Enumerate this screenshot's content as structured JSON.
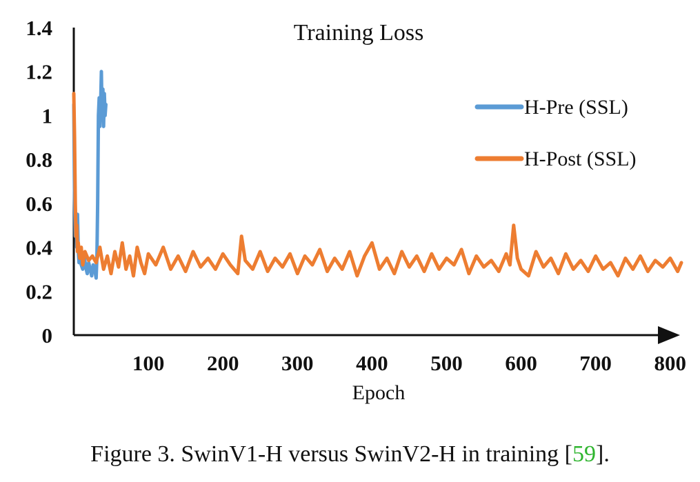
{
  "chart_data": {
    "type": "line",
    "title": "Training Loss",
    "xlabel": "Epoch",
    "ylabel": "",
    "xlim": [
      0,
      815
    ],
    "ylim": [
      0,
      1.4
    ],
    "x_ticks": [
      100,
      200,
      300,
      400,
      500,
      600,
      700,
      800
    ],
    "y_ticks": [
      0,
      0.2,
      0.4,
      0.6,
      0.8,
      1,
      1.2,
      1.4
    ],
    "y_tick_labels": [
      "0",
      "0.2",
      "0.4",
      "0.6",
      "0.8",
      "1",
      "1.2",
      "1.4"
    ],
    "legend_position": "right",
    "series": [
      {
        "name": "H-Pre (SSL)",
        "color": "#5b9bd5",
        "x": [
          0,
          1,
          2,
          3,
          4,
          5,
          6,
          7,
          8,
          10,
          12,
          14,
          16,
          18,
          20,
          22,
          24,
          26,
          28,
          30,
          31,
          32,
          33,
          34,
          35,
          36,
          37,
          38,
          39,
          40,
          41,
          42,
          43
        ],
        "y": [
          1.05,
          0.62,
          0.45,
          0.52,
          0.4,
          0.55,
          0.38,
          0.33,
          0.35,
          0.32,
          0.3,
          0.36,
          0.31,
          0.28,
          0.33,
          0.3,
          0.27,
          0.32,
          0.3,
          0.26,
          0.35,
          0.6,
          1.0,
          1.08,
          0.95,
          1.05,
          1.2,
          0.98,
          1.12,
          0.95,
          1.1,
          1.0,
          1.05
        ]
      },
      {
        "name": "H-Post (SSL)",
        "color": "#ed7d31",
        "x": [
          0,
          1,
          2,
          3,
          4,
          5,
          6,
          8,
          10,
          12,
          15,
          20,
          25,
          30,
          35,
          40,
          45,
          50,
          55,
          60,
          65,
          70,
          75,
          80,
          85,
          90,
          95,
          100,
          110,
          120,
          130,
          140,
          150,
          160,
          170,
          180,
          190,
          200,
          210,
          220,
          225,
          230,
          240,
          250,
          260,
          270,
          280,
          290,
          300,
          310,
          320,
          330,
          340,
          350,
          360,
          370,
          380,
          390,
          400,
          410,
          420,
          430,
          440,
          450,
          460,
          470,
          480,
          490,
          500,
          510,
          520,
          530,
          540,
          550,
          560,
          570,
          580,
          585,
          590,
          595,
          600,
          610,
          620,
          630,
          640,
          650,
          660,
          670,
          680,
          690,
          700,
          710,
          720,
          730,
          740,
          750,
          760,
          770,
          780,
          790,
          800,
          810,
          815
        ],
        "y": [
          1.1,
          0.9,
          0.6,
          0.45,
          0.5,
          0.38,
          0.42,
          0.35,
          0.4,
          0.32,
          0.38,
          0.34,
          0.36,
          0.33,
          0.4,
          0.3,
          0.36,
          0.28,
          0.38,
          0.31,
          0.42,
          0.3,
          0.36,
          0.27,
          0.4,
          0.33,
          0.28,
          0.37,
          0.32,
          0.4,
          0.3,
          0.36,
          0.29,
          0.38,
          0.31,
          0.35,
          0.3,
          0.37,
          0.32,
          0.28,
          0.45,
          0.34,
          0.3,
          0.38,
          0.29,
          0.35,
          0.31,
          0.37,
          0.28,
          0.36,
          0.32,
          0.39,
          0.29,
          0.35,
          0.3,
          0.38,
          0.27,
          0.36,
          0.42,
          0.3,
          0.35,
          0.28,
          0.38,
          0.31,
          0.36,
          0.29,
          0.37,
          0.3,
          0.35,
          0.32,
          0.39,
          0.28,
          0.36,
          0.31,
          0.34,
          0.29,
          0.37,
          0.32,
          0.5,
          0.35,
          0.3,
          0.27,
          0.38,
          0.31,
          0.35,
          0.28,
          0.37,
          0.3,
          0.34,
          0.29,
          0.36,
          0.3,
          0.33,
          0.27,
          0.35,
          0.3,
          0.36,
          0.29,
          0.34,
          0.31,
          0.35,
          0.29,
          0.33
        ]
      }
    ]
  },
  "caption": {
    "prefix": "Figure 3. SwinV1-H versus SwinV2-H in training [",
    "ref": "59",
    "suffix": "]."
  }
}
